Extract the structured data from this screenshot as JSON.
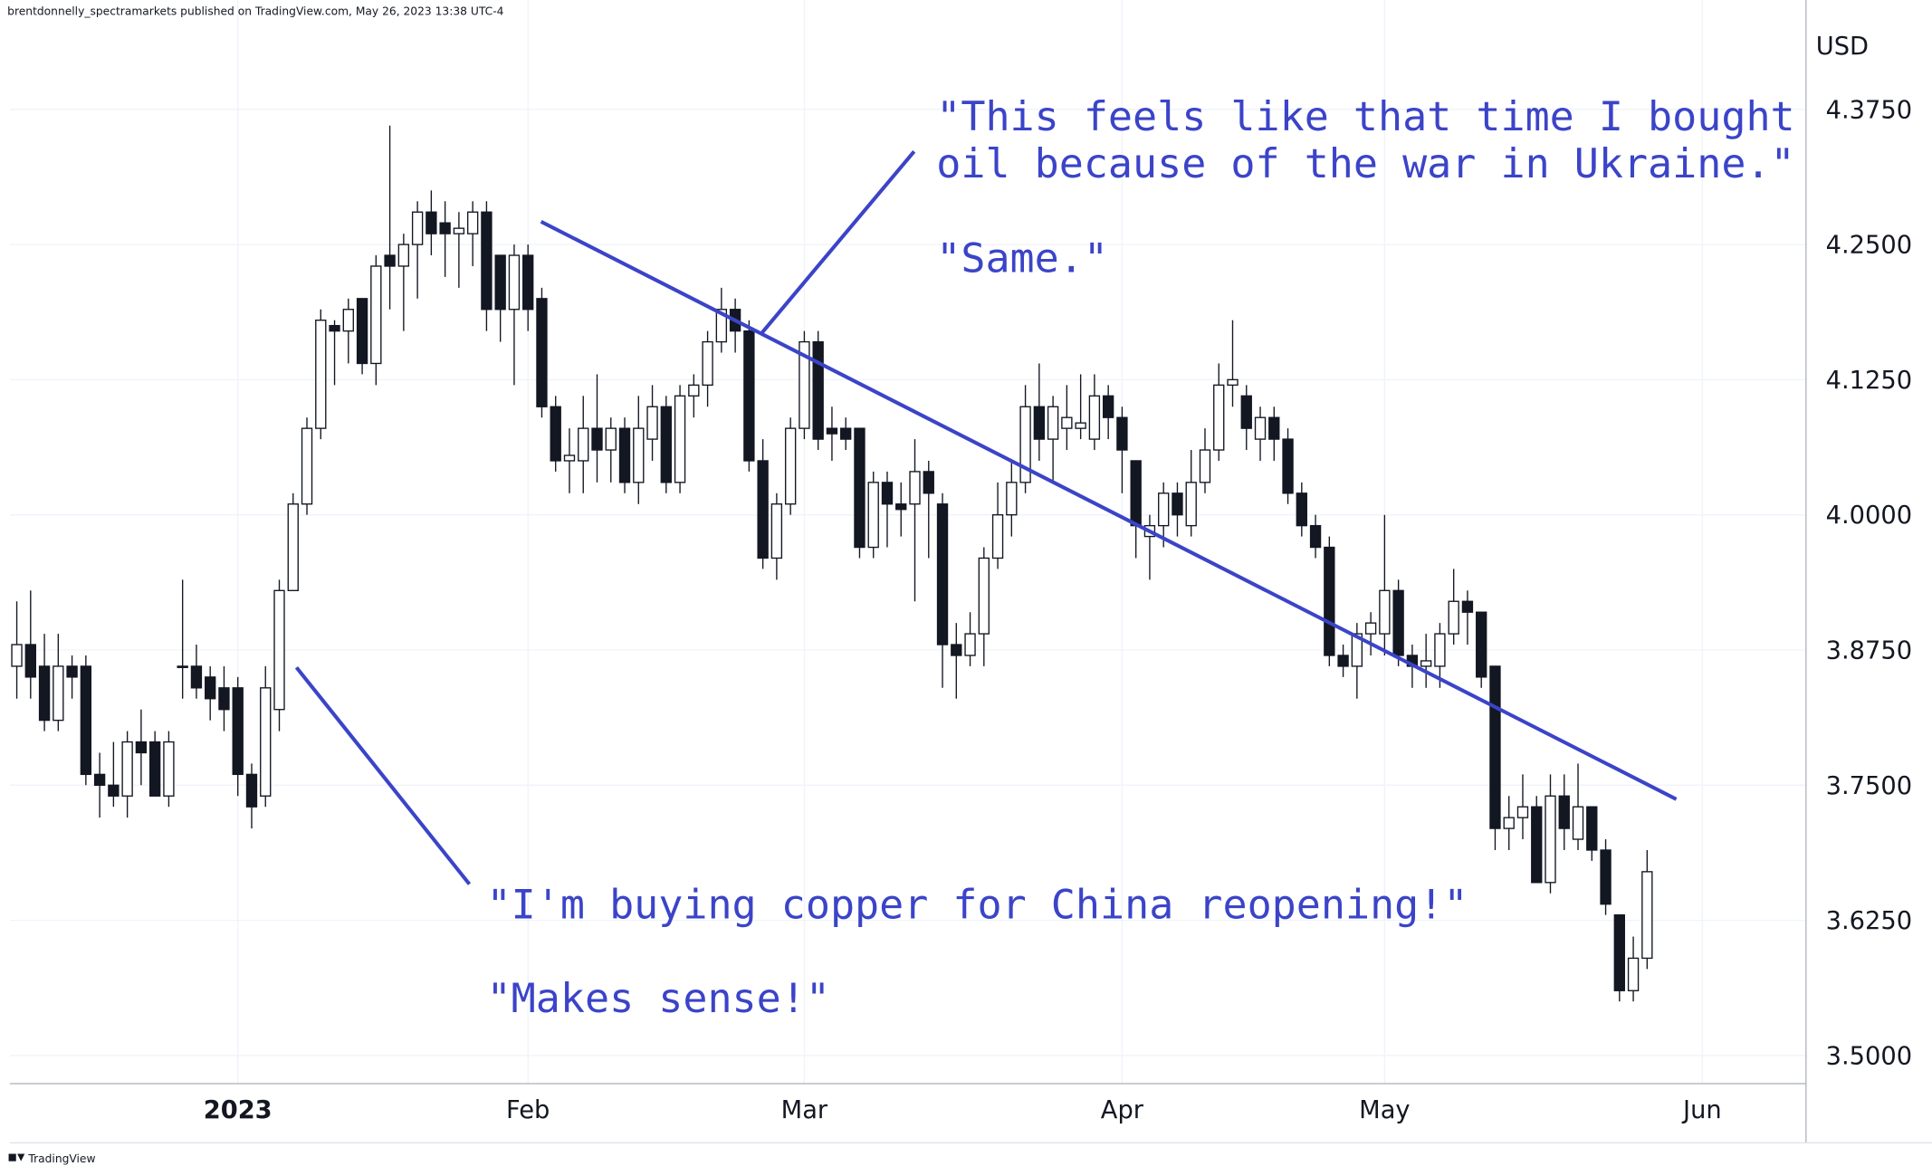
{
  "header": "brentdonnelly_spectramarkets published on TradingView.com, May 26, 2023 13:38 UTC-4",
  "footer": "TradingView",
  "chart_data": {
    "type": "candlestick",
    "y_axis_label": "USD",
    "annotations": [
      [
        "\"This feels like that time I bought",
        "oil because of the war in Ukraine.\""
      ],
      "\"Same.\"",
      "\"I'm buying copper for China reopening!\"",
      "\"Makes sense!\""
    ],
    "categories": [
      null,
      null,
      null,
      null,
      null,
      null,
      null,
      null,
      null,
      null,
      null,
      null,
      null,
      null,
      null,
      null,
      "2023",
      null,
      null,
      null,
      null,
      null,
      null,
      null,
      null,
      null,
      null,
      null,
      null,
      null,
      null,
      null,
      null,
      null,
      null,
      null,
      null,
      "Feb",
      null,
      null,
      null,
      null,
      null,
      null,
      null,
      null,
      null,
      null,
      null,
      null,
      null,
      null,
      null,
      null,
      null,
      null,
      null,
      "Mar",
      null,
      null,
      null,
      null,
      null,
      null,
      null,
      null,
      null,
      null,
      null,
      null,
      null,
      null,
      null,
      null,
      null,
      null,
      null,
      null,
      null,
      null,
      "Apr",
      null,
      null,
      null,
      null,
      null,
      null,
      null,
      null,
      null,
      null,
      null,
      null,
      null,
      null,
      null,
      null,
      null,
      null,
      "May",
      null,
      null,
      null,
      null,
      null,
      null,
      null,
      null,
      null,
      null,
      null,
      null,
      null,
      null,
      null,
      null,
      null,
      null,
      null,
      null,
      null,
      null,
      "Jun",
      null,
      null,
      null,
      null,
      null,
      null,
      null
    ],
    "open": [
      3.86,
      3.88,
      3.86,
      3.81,
      3.86,
      3.86,
      3.76,
      3.75,
      3.74,
      3.79,
      3.79,
      3.74,
      3.86,
      3.86,
      3.85,
      3.84,
      3.84,
      3.76,
      3.74,
      3.82,
      3.93,
      4.01,
      4.08,
      4.175,
      4.17,
      4.2,
      4.14,
      4.24,
      4.23,
      4.25,
      4.28,
      4.27,
      4.26,
      4.26,
      4.28,
      4.24,
      4.19,
      4.24,
      4.2,
      4.1,
      4.05,
      4.05,
      4.08,
      4.06,
      4.08,
      4.03,
      4.07,
      4.1,
      4.03,
      4.11,
      4.12,
      4.16,
      4.19,
      4.17,
      4.05,
      3.96,
      4.01,
      4.08,
      4.16,
      4.08,
      4.08,
      4.08,
      3.97,
      4.03,
      4.01,
      4.01,
      4.04,
      4.01,
      3.88,
      3.87,
      3.89,
      3.96,
      4.0,
      4.03,
      4.1,
      4.07,
      4.08,
      4.08,
      4.07,
      4.11,
      4.09,
      4.05,
      3.98,
      3.99,
      4.02,
      3.99,
      4.03,
      4.06,
      4.12,
      4.11,
      4.07,
      4.09,
      4.07,
      4.02,
      3.99,
      3.97,
      3.87,
      3.86,
      3.89,
      3.89,
      3.93,
      3.87,
      3.86,
      3.86,
      3.89,
      3.92,
      3.91,
      3.86,
      3.71,
      3.72,
      3.73,
      3.66,
      3.74,
      3.7,
      3.73,
      3.69,
      3.63,
      3.56,
      3.59,
      null,
      null,
      null,
      null,
      null,
      null,
      null,
      null,
      null,
      null,
      null
    ],
    "high": [
      3.92,
      3.93,
      3.89,
      3.89,
      3.87,
      3.87,
      3.78,
      3.79,
      3.8,
      3.82,
      3.8,
      3.8,
      3.94,
      3.88,
      3.86,
      3.86,
      3.85,
      3.77,
      3.86,
      3.94,
      4.02,
      4.09,
      4.19,
      4.18,
      4.2,
      4.2,
      4.24,
      4.36,
      4.26,
      4.29,
      4.3,
      4.29,
      4.28,
      4.29,
      4.29,
      4.24,
      4.25,
      4.25,
      4.21,
      4.11,
      4.08,
      4.11,
      4.13,
      4.09,
      4.09,
      4.11,
      4.12,
      4.11,
      4.12,
      4.13,
      4.17,
      4.21,
      4.2,
      4.18,
      4.07,
      4.02,
      4.09,
      4.17,
      4.17,
      4.1,
      4.09,
      4.08,
      4.04,
      4.04,
      4.03,
      4.07,
      4.05,
      4.02,
      3.9,
      3.91,
      3.97,
      4.03,
      4.05,
      4.12,
      4.14,
      4.11,
      4.12,
      4.13,
      4.13,
      4.12,
      4.1,
      4.05,
      4.0,
      4.03,
      4.03,
      4.06,
      4.08,
      4.14,
      4.18,
      4.12,
      4.1,
      4.1,
      4.08,
      4.03,
      4.0,
      3.98,
      3.88,
      3.9,
      3.91,
      4.0,
      3.94,
      3.88,
      3.89,
      3.9,
      3.95,
      3.93,
      3.91,
      3.86,
      3.74,
      3.76,
      3.74,
      3.76,
      3.76,
      3.77,
      3.73,
      3.7,
      3.63,
      3.61,
      3.69,
      null,
      null,
      null,
      null,
      null,
      null,
      null,
      null,
      null,
      null,
      null
    ],
    "low": [
      3.83,
      3.83,
      3.8,
      3.8,
      3.83,
      3.75,
      3.72,
      3.73,
      3.72,
      3.75,
      3.74,
      3.73,
      3.83,
      3.83,
      3.81,
      3.8,
      3.74,
      3.71,
      3.73,
      3.8,
      3.93,
      4.0,
      4.07,
      4.12,
      4.14,
      4.13,
      4.12,
      4.19,
      4.17,
      4.2,
      4.24,
      4.22,
      4.21,
      4.23,
      4.17,
      4.16,
      4.12,
      4.17,
      4.09,
      4.04,
      4.02,
      4.02,
      4.03,
      4.03,
      4.02,
      4.01,
      4.05,
      4.02,
      4.02,
      4.09,
      4.1,
      4.15,
      4.15,
      4.04,
      3.95,
      3.94,
      4.0,
      4.07,
      4.06,
      4.05,
      4.06,
      3.96,
      3.96,
      3.97,
      3.98,
      3.92,
      3.96,
      3.84,
      3.83,
      3.86,
      3.86,
      3.95,
      3.98,
      4.02,
      4.05,
      4.03,
      4.06,
      4.07,
      4.06,
      4.07,
      4.02,
      3.96,
      3.94,
      3.97,
      3.98,
      3.98,
      4.02,
      4.05,
      4.1,
      4.06,
      4.05,
      4.05,
      4.01,
      3.98,
      3.96,
      3.86,
      3.85,
      3.83,
      3.87,
      3.87,
      3.86,
      3.84,
      3.84,
      3.84,
      3.88,
      3.88,
      3.84,
      3.69,
      3.69,
      3.7,
      3.66,
      3.65,
      3.69,
      3.69,
      3.68,
      3.63,
      3.55,
      3.55,
      3.58,
      null,
      null,
      null,
      null,
      null,
      null,
      null,
      null,
      null,
      null,
      null
    ],
    "close": [
      3.88,
      3.85,
      3.81,
      3.86,
      3.85,
      3.76,
      3.75,
      3.74,
      3.79,
      3.78,
      3.74,
      3.79,
      3.86,
      3.84,
      3.83,
      3.82,
      3.76,
      3.73,
      3.84,
      3.93,
      4.01,
      4.08,
      4.18,
      4.17,
      4.19,
      4.14,
      4.23,
      4.23,
      4.25,
      4.28,
      4.26,
      4.26,
      4.265,
      4.28,
      4.19,
      4.19,
      4.24,
      4.19,
      4.1,
      4.05,
      4.055,
      4.08,
      4.06,
      4.08,
      4.03,
      4.08,
      4.1,
      4.03,
      4.11,
      4.12,
      4.16,
      4.19,
      4.17,
      4.05,
      3.96,
      4.01,
      4.08,
      4.16,
      4.07,
      4.075,
      4.07,
      3.97,
      4.03,
      4.01,
      4.005,
      4.04,
      4.02,
      3.88,
      3.87,
      3.89,
      3.96,
      4.0,
      4.03,
      4.1,
      4.07,
      4.1,
      4.09,
      4.085,
      4.11,
      4.09,
      4.06,
      3.99,
      3.99,
      4.02,
      4.0,
      4.03,
      4.06,
      4.12,
      4.125,
      4.08,
      4.09,
      4.07,
      4.02,
      3.99,
      3.97,
      3.87,
      3.86,
      3.89,
      3.9,
      3.93,
      3.87,
      3.86,
      3.865,
      3.89,
      3.92,
      3.91,
      3.85,
      3.71,
      3.72,
      3.73,
      3.66,
      3.74,
      3.71,
      3.73,
      3.69,
      3.64,
      3.56,
      3.59,
      3.67,
      null,
      null,
      null,
      null,
      null,
      null,
      null,
      null,
      null,
      null,
      null
    ],
    "up_color": "#ffffff",
    "down_color": "#131722",
    "outline_color": "#131722",
    "ylim": [
      3.474,
      4.467
    ],
    "yticks": [
      {
        "value": 3.5,
        "label": "3.5000"
      },
      {
        "value": 3.625,
        "label": "3.6250"
      },
      {
        "value": 3.75,
        "label": "3.7500"
      },
      {
        "value": 3.875,
        "label": "3.8750"
      },
      {
        "value": 4.0,
        "label": "4.0000"
      },
      {
        "value": 4.125,
        "label": "4.1250"
      },
      {
        "value": 4.25,
        "label": "4.2500"
      },
      {
        "value": 4.375,
        "label": "4.3750"
      }
    ],
    "grid": true
  }
}
